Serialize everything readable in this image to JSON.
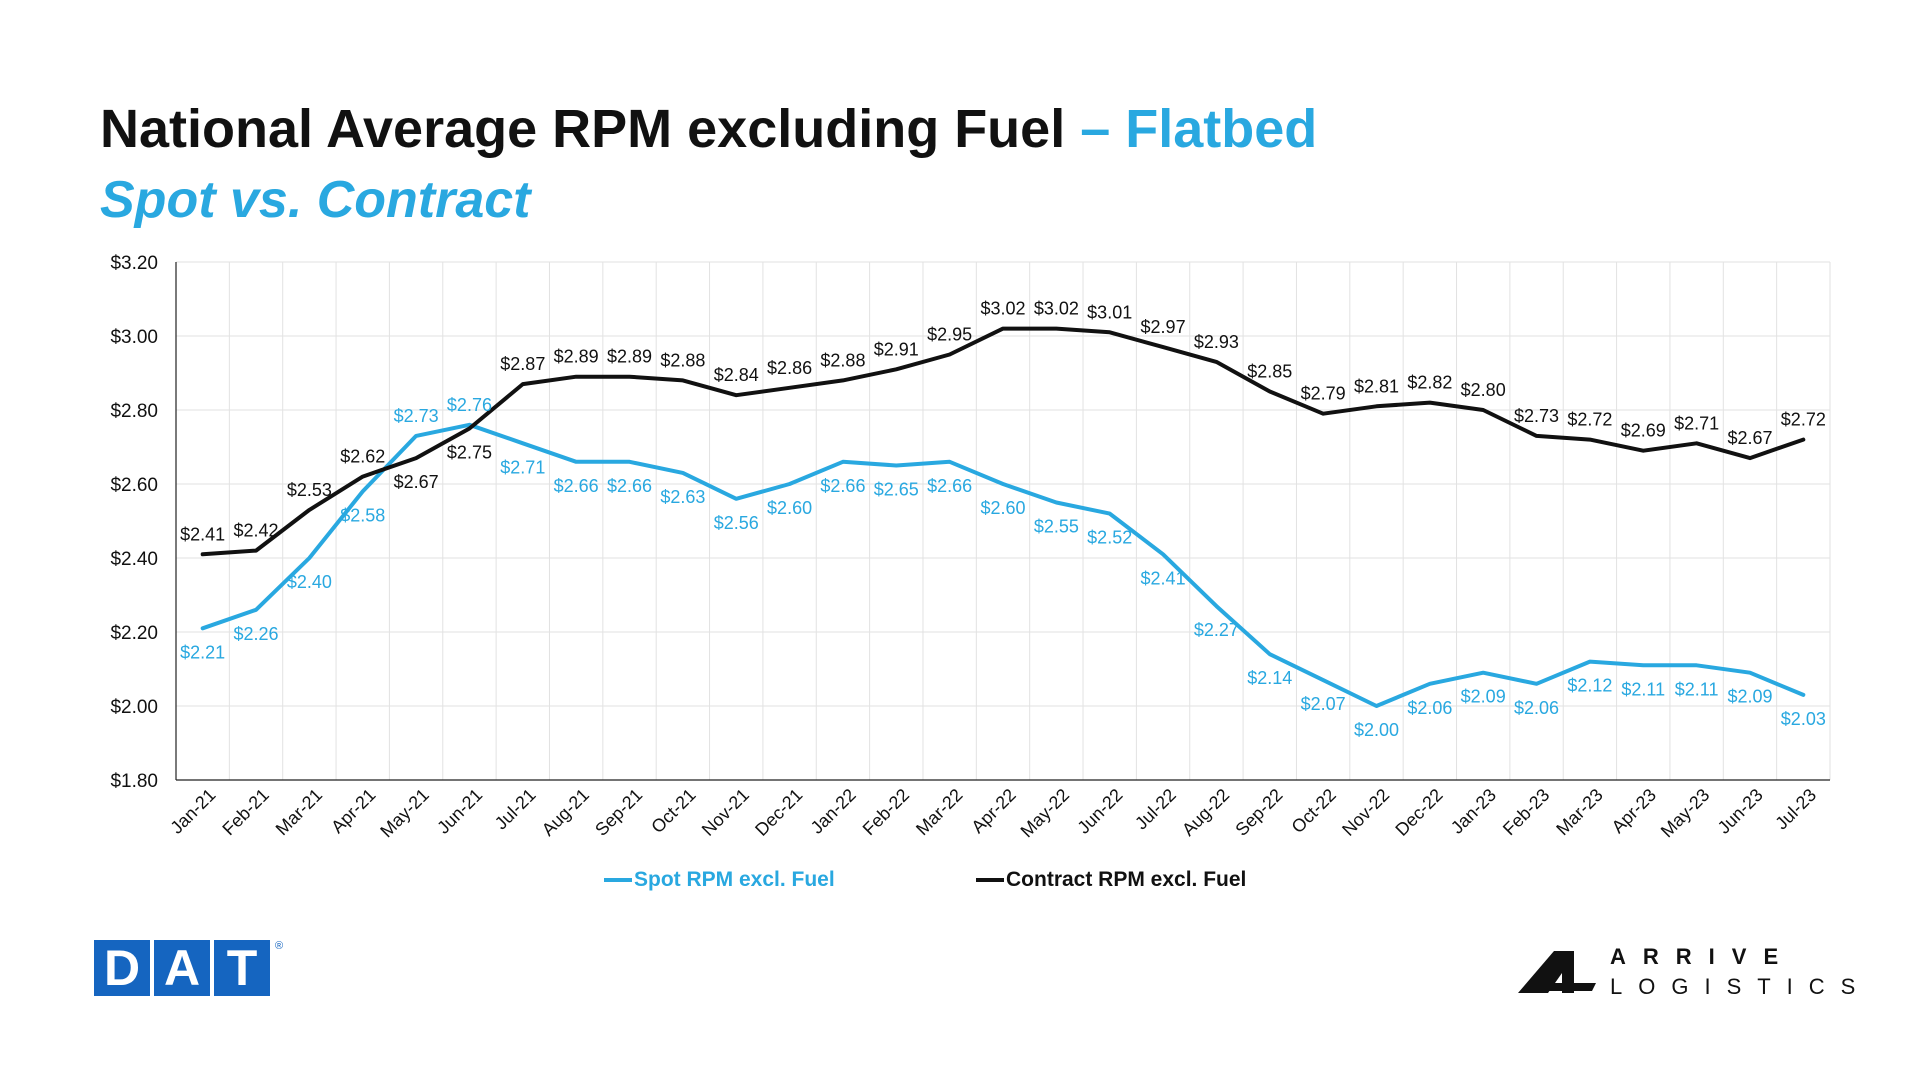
{
  "header": {
    "title_main": "National Average RPM excluding Fuel",
    "title_accent": "– Flatbed",
    "subtitle": "Spot vs. Contract"
  },
  "colors": {
    "spot": "#29A8E0",
    "contract": "#111111",
    "accent": "#29A8E0",
    "dat_blue": "#1565C0"
  },
  "chart_data": {
    "type": "line",
    "categories": [
      "Jan-21",
      "Feb-21",
      "Mar-21",
      "Apr-21",
      "May-21",
      "Jun-21",
      "Jul-21",
      "Aug-21",
      "Sep-21",
      "Oct-21",
      "Nov-21",
      "Dec-21",
      "Jan-22",
      "Feb-22",
      "Mar-22",
      "Apr-22",
      "May-22",
      "Jun-22",
      "Jul-22",
      "Aug-22",
      "Sep-22",
      "Oct-22",
      "Nov-22",
      "Dec-22",
      "Jan-23",
      "Feb-23",
      "Mar-23",
      "Apr-23",
      "May-23",
      "Jun-23",
      "Jul-23"
    ],
    "series": [
      {
        "name": "Spot RPM excl. Fuel",
        "values": [
          2.21,
          2.26,
          2.4,
          2.58,
          2.73,
          2.76,
          2.71,
          2.66,
          2.66,
          2.63,
          2.56,
          2.6,
          2.66,
          2.65,
          2.66,
          2.6,
          2.55,
          2.52,
          2.41,
          2.27,
          2.14,
          2.07,
          2.0,
          2.06,
          2.09,
          2.06,
          2.12,
          2.11,
          2.11,
          2.09,
          2.03
        ],
        "labels": [
          "$2.21",
          "$2.26",
          "$2.40",
          "$2.58",
          "$2.73",
          "$2.76",
          "$2.71",
          "$2.66",
          "$2.66",
          "$2.63",
          "$2.56",
          "$2.60",
          "$2.66",
          "$2.65",
          "$2.66",
          "$2.60",
          "$2.55",
          "$2.52",
          "$2.41",
          "$2.27",
          "$2.14",
          "$2.07",
          "$2.00",
          "$2.06",
          "$2.09",
          "$2.06",
          "$2.12",
          "$2.11",
          "$2.11",
          "$2.09",
          "$2.03"
        ]
      },
      {
        "name": "Contract RPM excl. Fuel",
        "values": [
          2.41,
          2.42,
          2.53,
          2.62,
          2.67,
          2.75,
          2.87,
          2.89,
          2.89,
          2.88,
          2.84,
          2.86,
          2.88,
          2.91,
          2.95,
          3.02,
          3.02,
          3.01,
          2.97,
          2.93,
          2.85,
          2.79,
          2.81,
          2.82,
          2.8,
          2.73,
          2.72,
          2.69,
          2.71,
          2.67,
          2.72
        ],
        "labels": [
          "$2.41",
          "$2.42",
          "$2.53",
          "$2.62",
          "$2.67",
          "$2.75",
          "$2.87",
          "$2.89",
          "$2.89",
          "$2.88",
          "$2.84",
          "$2.86",
          "$2.88",
          "$2.91",
          "$2.95",
          "$3.02",
          "$3.02",
          "$3.01",
          "$2.97",
          "$2.93",
          "$2.85",
          "$2.79",
          "$2.81",
          "$2.82",
          "$2.80",
          "$2.73",
          "$2.72",
          "$2.69",
          "$2.71",
          "$2.67",
          "$2.72"
        ]
      }
    ],
    "yticks": [
      1.8,
      2.0,
      2.2,
      2.4,
      2.6,
      2.8,
      3.0,
      3.2
    ],
    "ytick_labels": [
      "$1.80",
      "$2.00",
      "$2.20",
      "$2.40",
      "$2.60",
      "$2.80",
      "$3.00",
      "$3.20"
    ],
    "ylim": [
      1.8,
      3.2
    ],
    "grid": true,
    "legend_placement": "bottom"
  },
  "logos": {
    "dat_letters": [
      "D",
      "A",
      "T"
    ],
    "dat_reg": "®",
    "arrive_line1": "ARRIVE",
    "arrive_line2": "LOGISTICS"
  }
}
